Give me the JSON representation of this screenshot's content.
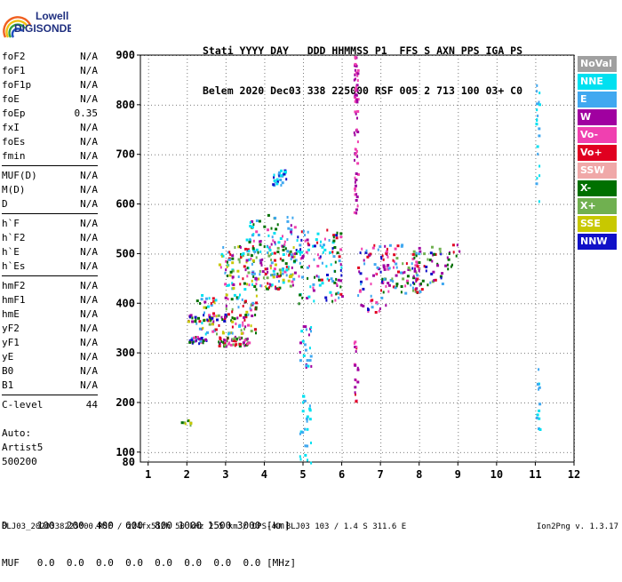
{
  "logo": {
    "line1": "Lowell",
    "line2": "DIGISONDE"
  },
  "header": {
    "line1": "Stati YYYY DAY   DDD HHMMSS P1  FFS S AXN PPS IGA PS",
    "line2": "Belem 2020 Dec03 338 225000 RSF 005 2 713 100 03+ C0"
  },
  "params_groups": [
    [
      {
        "name": "foF2",
        "value": "N/A"
      },
      {
        "name": "foF1",
        "value": "N/A"
      },
      {
        "name": "foF1p",
        "value": "N/A"
      },
      {
        "name": "foE",
        "value": "N/A"
      },
      {
        "name": "foEp",
        "value": "0.35"
      },
      {
        "name": "fxI",
        "value": "N/A"
      },
      {
        "name": "foEs",
        "value": "N/A"
      },
      {
        "name": "fmin",
        "value": "N/A"
      }
    ],
    [
      {
        "name": "MUF(D)",
        "value": "N/A"
      },
      {
        "name": "M(D)",
        "value": "N/A"
      },
      {
        "name": "D",
        "value": "N/A"
      }
    ],
    [
      {
        "name": "h`F",
        "value": "N/A"
      },
      {
        "name": "h`F2",
        "value": "N/A"
      },
      {
        "name": "h`E",
        "value": "N/A"
      },
      {
        "name": "h`Es",
        "value": "N/A"
      }
    ],
    [
      {
        "name": "hmF2",
        "value": "N/A"
      },
      {
        "name": "hmF1",
        "value": "N/A"
      },
      {
        "name": "hmE",
        "value": "N/A"
      },
      {
        "name": "yF2",
        "value": "N/A"
      },
      {
        "name": "yF1",
        "value": "N/A"
      },
      {
        "name": "yE",
        "value": "N/A"
      },
      {
        "name": "B0",
        "value": "N/A"
      },
      {
        "name": "B1",
        "value": "N/A"
      }
    ],
    [
      {
        "name": "C-level",
        "value": "44"
      }
    ]
  ],
  "auto": {
    "line1": "Auto:",
    "line2": "Artist5",
    "line3": "500200"
  },
  "dtable": {
    "d_row": "D     100  200  400  600  800 1000 1500 3000 [km]",
    "muf_row": "MUF   0.0  0.0  0.0  0.0  0.0  0.0  0.0  0.0 [MHz]"
  },
  "footer": {
    "left": "BLJ03_2020338225000.RSF / 224fx512h 50 kHz 2.5 km / DPS-4D BLJ03 103 / 1.4 S 311.6 E",
    "right": "Ion2Png v. 1.3.17"
  },
  "legend": [
    {
      "label": "NoVal",
      "color": "#a0a0a0"
    },
    {
      "label": "NNE",
      "color": "#00e0f0"
    },
    {
      "label": "E",
      "color": "#40a8f0"
    },
    {
      "label": "W",
      "color": "#a000a0"
    },
    {
      "label": "Vo-",
      "color": "#f040b0"
    },
    {
      "label": "Vo+",
      "color": "#e00020"
    },
    {
      "label": "SSW",
      "color": "#f0a8a8"
    },
    {
      "label": "X-",
      "color": "#007000"
    },
    {
      "label": "X+",
      "color": "#70b050"
    },
    {
      "label": "SSE",
      "color": "#c8c800"
    },
    {
      "label": "NNW",
      "color": "#1010c8"
    }
  ],
  "chart_data": {
    "type": "scatter",
    "xlim": [
      0.8,
      12
    ],
    "ylim": [
      80,
      900
    ],
    "x_ticks": [
      "1",
      "2",
      "3",
      "4",
      "5",
      "6",
      "7",
      "8",
      "9",
      "10",
      "11",
      "12"
    ],
    "y_ticks": [
      "100",
      "200",
      "300",
      "400",
      "500",
      "600",
      "700",
      "800",
      "900"
    ],
    "y_tick_bottom": "80",
    "grid": true,
    "clusters": [
      {
        "x": [
          2.0,
          2.5
        ],
        "y": [
          320,
          335
        ],
        "n": 30,
        "colors": [
          "W",
          "Vo-",
          "X-",
          "NNW",
          "E"
        ]
      },
      {
        "x": [
          1.8,
          2.2
        ],
        "y": [
          155,
          168
        ],
        "n": 8,
        "colors": [
          "SSE",
          "X+",
          "X-"
        ]
      },
      {
        "x": [
          2.2,
          3.8
        ],
        "y": [
          340,
          420
        ],
        "n": 120,
        "colors": [
          "W",
          "Vo-",
          "E",
          "X-",
          "X+",
          "Vo+",
          "NNE",
          "SSE"
        ]
      },
      {
        "x": [
          2.8,
          3.6
        ],
        "y": [
          315,
          335
        ],
        "n": 60,
        "colors": [
          "Vo+",
          "Vo-",
          "X-",
          "X+",
          "W"
        ]
      },
      {
        "x": [
          2.0,
          3.0
        ],
        "y": [
          365,
          380
        ],
        "n": 25,
        "colors": [
          "W",
          "X-",
          "NNW",
          "SSE"
        ]
      },
      {
        "x": [
          2.8,
          4.8
        ],
        "y": [
          430,
          520
        ],
        "n": 200,
        "colors": [
          "E",
          "NNE",
          "W",
          "Vo-",
          "X+",
          "X-",
          "Vo+",
          "SSE"
        ]
      },
      {
        "x": [
          3.5,
          4.8
        ],
        "y": [
          480,
          580
        ],
        "n": 70,
        "colors": [
          "E",
          "NNE",
          "W",
          "Vo-",
          "X-"
        ]
      },
      {
        "x": [
          4.2,
          4.6
        ],
        "y": [
          640,
          670
        ],
        "n": 30,
        "colors": [
          "E",
          "NNE",
          "NNW"
        ]
      },
      {
        "x": [
          4.8,
          6.0
        ],
        "y": [
          400,
          550
        ],
        "n": 120,
        "colors": [
          "Vo+",
          "W",
          "Vo-",
          "E",
          "X-",
          "NNW",
          "NNE"
        ]
      },
      {
        "x": [
          4.9,
          5.2
        ],
        "y": [
          260,
          360
        ],
        "n": 25,
        "colors": [
          "E",
          "NNE",
          "W"
        ]
      },
      {
        "x": [
          4.9,
          5.2
        ],
        "y": [
          80,
          220
        ],
        "n": 25,
        "colors": [
          "E",
          "NNE"
        ]
      },
      {
        "x": [
          6.3,
          6.4
        ],
        "y": [
          580,
          900
        ],
        "n": 70,
        "colors": [
          "W",
          "Vo-"
        ]
      },
      {
        "x": [
          6.3,
          6.4
        ],
        "y": [
          200,
          330
        ],
        "n": 18,
        "colors": [
          "W",
          "Vo-",
          "Vo+"
        ]
      },
      {
        "x": [
          6.4,
          7.2
        ],
        "y": [
          380,
          520
        ],
        "n": 60,
        "colors": [
          "E",
          "W",
          "Vo-",
          "Vo+",
          "NNW"
        ]
      },
      {
        "x": [
          7.0,
          8.0
        ],
        "y": [
          420,
          520
        ],
        "n": 80,
        "colors": [
          "Vo+",
          "W",
          "Vo-",
          "X-",
          "X+",
          "E"
        ]
      },
      {
        "x": [
          7.8,
          8.6
        ],
        "y": [
          430,
          520
        ],
        "n": 50,
        "colors": [
          "W",
          "Vo+",
          "E",
          "X-",
          "X+",
          "NNW"
        ]
      },
      {
        "x": [
          11.0,
          11.1
        ],
        "y": [
          140,
          280
        ],
        "n": 12,
        "colors": [
          "NNE",
          "E"
        ]
      },
      {
        "x": [
          11.0,
          11.1
        ],
        "y": [
          600,
          850
        ],
        "n": 20,
        "colors": [
          "NNE",
          "E"
        ]
      },
      {
        "x": [
          8.6,
          9.1
        ],
        "y": [
          470,
          520
        ],
        "n": 14,
        "colors": [
          "W",
          "Vo+",
          "X-"
        ]
      }
    ]
  }
}
